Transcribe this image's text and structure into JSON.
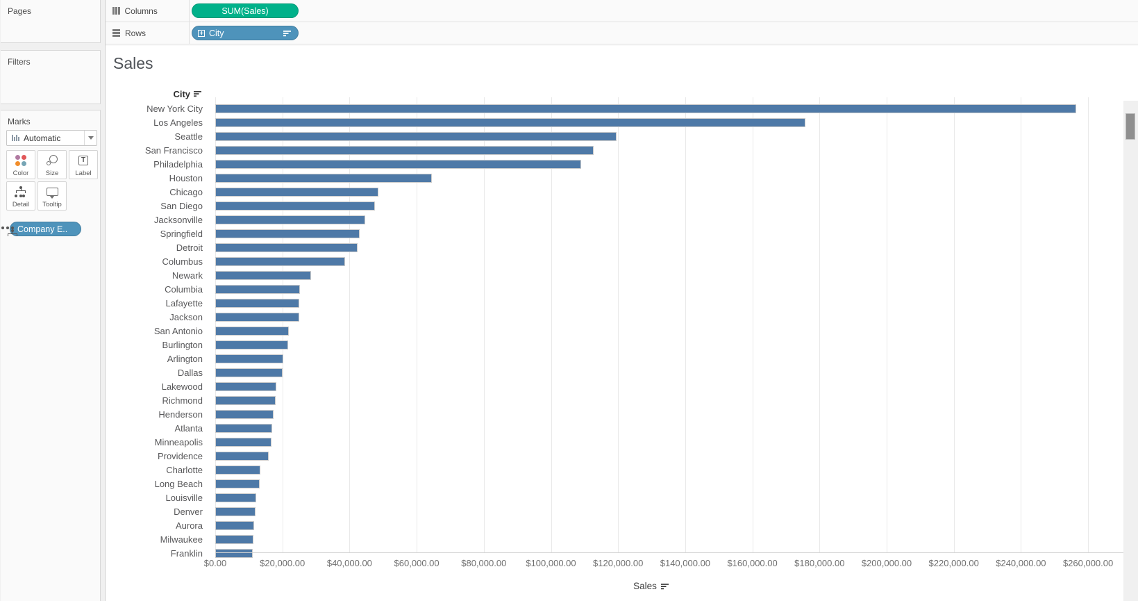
{
  "sidebar": {
    "pages_label": "Pages",
    "filters_label": "Filters",
    "marks_label": "Marks",
    "mark_type": "Automatic",
    "mark_buttons": [
      "Color",
      "Size",
      "Label",
      "Detail",
      "Tooltip"
    ],
    "detail_pill": "Company E.."
  },
  "shelves": {
    "columns_label": "Columns",
    "columns_pill": "SUM(Sales)",
    "rows_label": "Rows",
    "rows_pill": "City"
  },
  "chart_data": {
    "type": "bar",
    "orientation": "horizontal",
    "title": "Sales",
    "row_header": "City",
    "xlabel": "Sales",
    "sort": "descending by SUM(Sales)",
    "grid": true,
    "bar_color": "#4e79a7",
    "xlim": [
      0,
      270000
    ],
    "categories": [
      "New York City",
      "Los Angeles",
      "Seattle",
      "San Francisco",
      "Philadelphia",
      "Houston",
      "Chicago",
      "San Diego",
      "Jacksonville",
      "Springfield",
      "Detroit",
      "Columbus",
      "Newark",
      "Columbia",
      "Lafayette",
      "Jackson",
      "San Antonio",
      "Burlington",
      "Arlington",
      "Dallas",
      "Lakewood",
      "Richmond",
      "Henderson",
      "Atlanta",
      "Minneapolis",
      "Providence",
      "Charlotte",
      "Long Beach",
      "Louisville",
      "Denver",
      "Aurora",
      "Milwaukee",
      "Franklin"
    ],
    "values": [
      256368,
      175851,
      119541,
      112669,
      109077,
      64505,
      48540,
      47521,
      44713,
      43054,
      42447,
      38663,
      28448,
      25283,
      25036,
      24964,
      21844,
      21668,
      20215,
      20132,
      18100,
      17950,
      17380,
      17030,
      16760,
      15870,
      13510,
      13310,
      12270,
      11930,
      11590,
      11300,
      11150
    ],
    "x_ticks": [
      0,
      20000,
      40000,
      60000,
      80000,
      100000,
      120000,
      140000,
      160000,
      180000,
      200000,
      220000,
      240000,
      260000
    ],
    "x_tick_labels": [
      "$0.00",
      "$20,000.00",
      "$40,000.00",
      "$60,000.00",
      "$80,000.00",
      "$100,000.00",
      "$120,000.00",
      "$140,000.00",
      "$160,000.00",
      "$180,000.00",
      "$200,000.00",
      "$220,000.00",
      "$240,000.00",
      "$260,000.00"
    ]
  },
  "colors": {
    "bar": "#4e79a7",
    "pill_green": "#00b18a",
    "pill_blue": "#4e93bb",
    "color_dots": [
      "#b07aa1",
      "#e15759",
      "#f28e2b",
      "#76a5b5"
    ]
  }
}
